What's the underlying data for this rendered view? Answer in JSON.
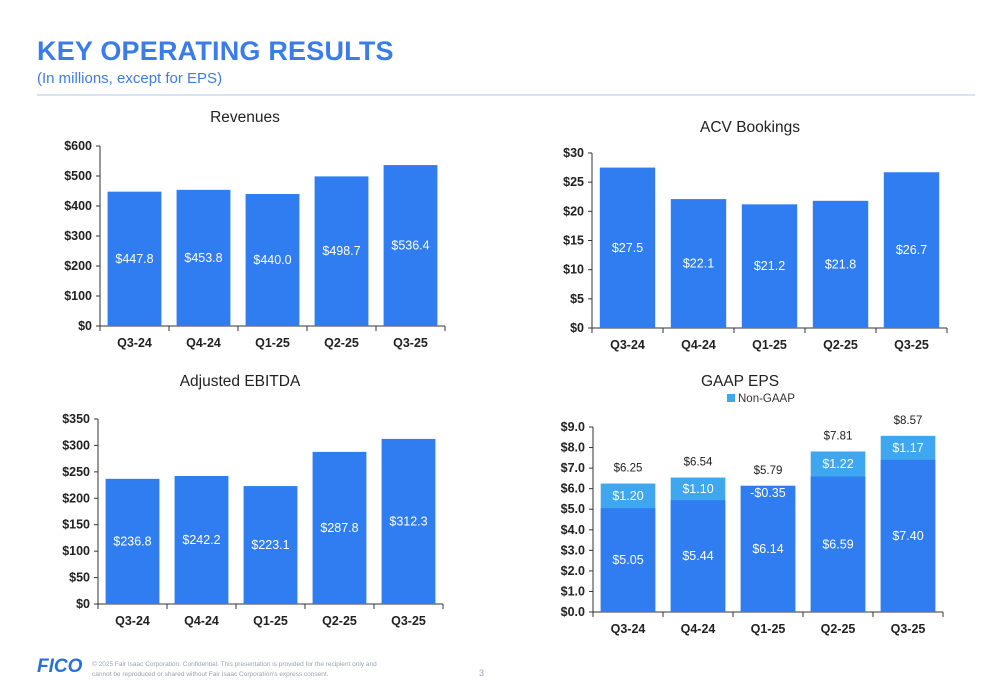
{
  "header": {
    "title": "KEY OPERATING RESULTS",
    "subtitle": "(In millions, except for EPS)"
  },
  "colors": {
    "brand": "#3a7dea",
    "bar": "#2f7df0",
    "bar_light": "#3fa7ef",
    "axis": "#333333"
  },
  "footer": {
    "logo": "FICO",
    "note": "© 2025 Fair Isaac Corporation. Confidential. This presentation is provided for the recipient only and cannot be reproduced or shared without Fair Isaac Corporation's express consent.",
    "page_number": "3"
  },
  "chart_data": [
    {
      "type": "bar",
      "title": "Revenues",
      "categories": [
        "Q3-24",
        "Q4-24",
        "Q1-25",
        "Q2-25",
        "Q3-25"
      ],
      "values": [
        447.8,
        453.8,
        440.0,
        498.7,
        536.4
      ],
      "labels": [
        "$447.8",
        "$453.8",
        "$440.0",
        "$498.7",
        "$536.4"
      ],
      "yticks": [
        "$0",
        "$100",
        "$200",
        "$300",
        "$400",
        "$500",
        "$600"
      ],
      "ylim": [
        0,
        600
      ],
      "xlabel": "",
      "ylabel": "",
      "grid": false
    },
    {
      "type": "bar",
      "title": "ACV Bookings",
      "categories": [
        "Q3-24",
        "Q4-24",
        "Q1-25",
        "Q2-25",
        "Q3-25"
      ],
      "values": [
        27.5,
        22.1,
        21.2,
        21.8,
        26.7
      ],
      "labels": [
        "$27.5",
        "$22.1",
        "$21.2",
        "$21.8",
        "$26.7"
      ],
      "yticks": [
        "$0",
        "$5",
        "$10",
        "$15",
        "$20",
        "$25",
        "$30"
      ],
      "ylim": [
        0,
        30
      ],
      "xlabel": "",
      "ylabel": "",
      "grid": false
    },
    {
      "type": "bar",
      "title": "Adjusted EBITDA",
      "categories": [
        "Q3-24",
        "Q4-24",
        "Q1-25",
        "Q2-25",
        "Q3-25"
      ],
      "values": [
        236.8,
        242.2,
        223.1,
        287.8,
        312.3
      ],
      "labels": [
        "$236.8",
        "$242.2",
        "$223.1",
        "$287.8",
        "$312.3"
      ],
      "yticks": [
        "$0",
        "$50",
        "$100",
        "$150",
        "$200",
        "$250",
        "$300",
        "$350"
      ],
      "ylim": [
        0,
        350
      ],
      "xlabel": "",
      "ylabel": "",
      "grid": false
    },
    {
      "type": "bar",
      "stacked": true,
      "title": "GAAP EPS",
      "categories": [
        "Q3-24",
        "Q4-24",
        "Q1-25",
        "Q2-25",
        "Q3-25"
      ],
      "series": [
        {
          "values": [
            5.05,
            5.44,
            6.14,
            6.59,
            7.4
          ],
          "labels": [
            "$5.05",
            "$5.44",
            "$6.14",
            "$6.59",
            "$7.40"
          ]
        },
        {
          "name": "Non-GAAP",
          "values": [
            1.2,
            1.1,
            -0.35,
            1.22,
            1.17
          ],
          "labels": [
            "$1.20",
            "$1.10",
            "-$0.35",
            "$1.22",
            "$1.17"
          ]
        }
      ],
      "totals": [
        "$6.25",
        "$6.54",
        "$5.79",
        "$7.81",
        "$8.57"
      ],
      "total_values": [
        6.25,
        6.54,
        5.79,
        7.81,
        8.57
      ],
      "yticks": [
        "$0.0",
        "$1.0",
        "$2.0",
        "$3.0",
        "$4.0",
        "$5.0",
        "$6.0",
        "$7.0",
        "$8.0",
        "$9.0"
      ],
      "ylim": [
        0,
        9
      ],
      "legend": "top-center",
      "xlabel": "",
      "ylabel": "",
      "grid": false
    }
  ]
}
